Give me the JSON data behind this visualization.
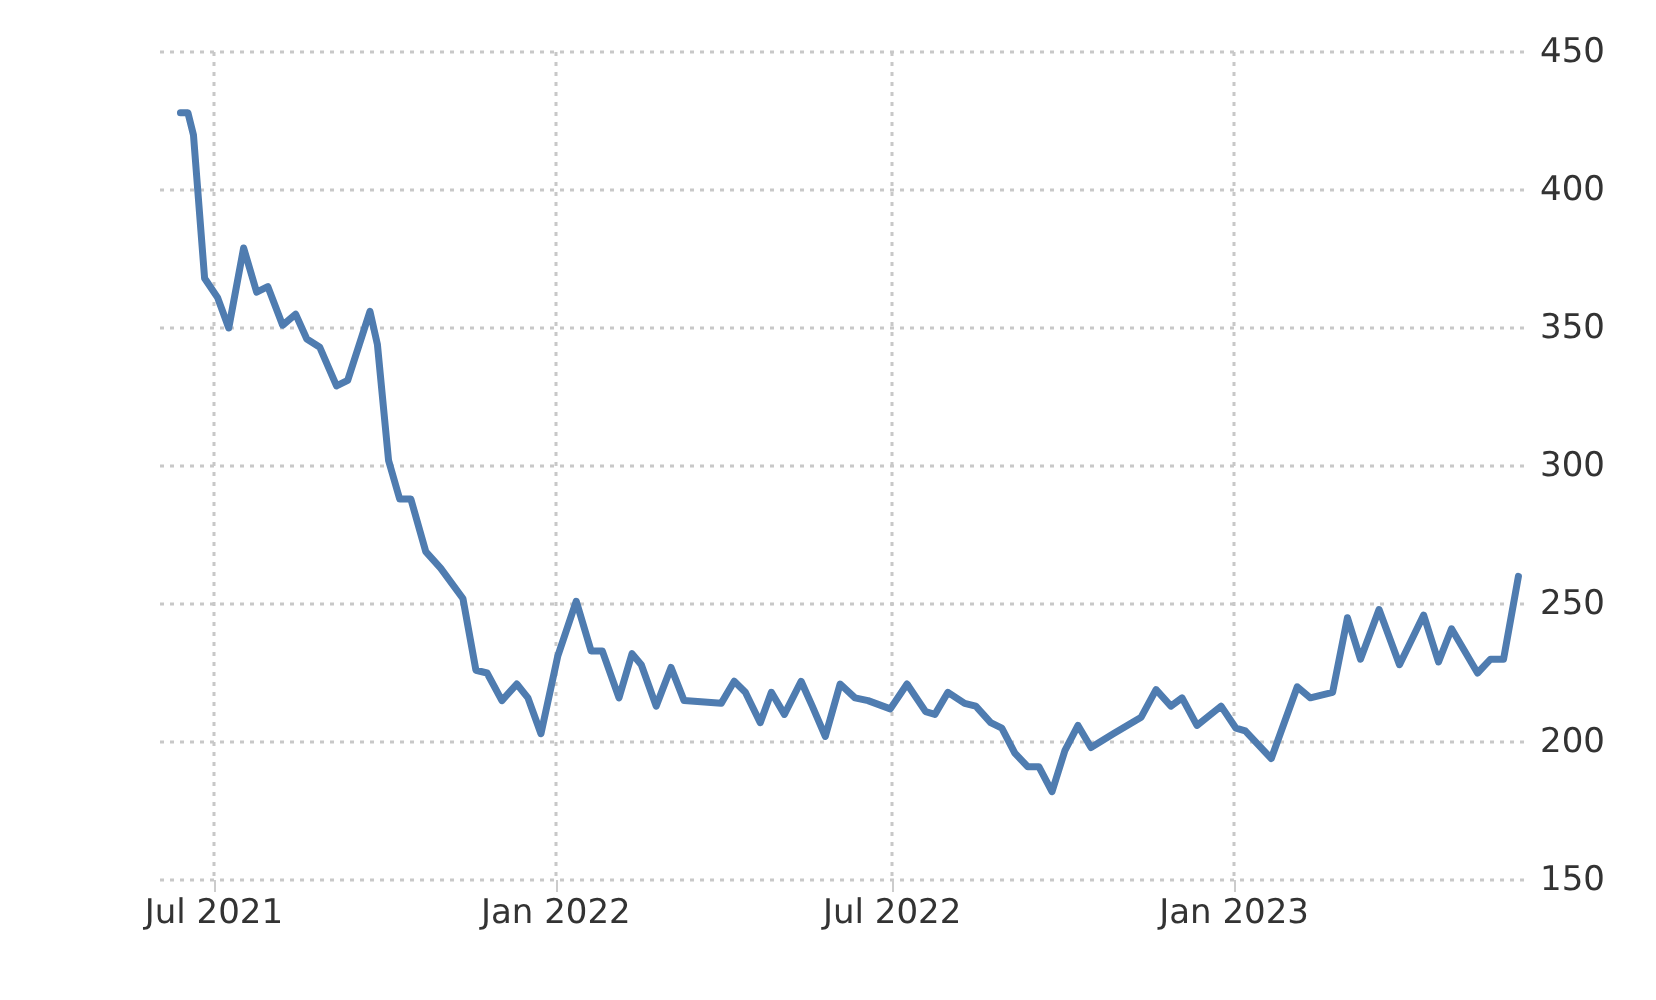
{
  "chart_data": {
    "type": "line",
    "x": [
      "2021-06-13",
      "2021-06-17",
      "2021-06-20",
      "2021-06-26",
      "2021-07-03",
      "2021-07-09",
      "2021-07-17",
      "2021-07-24",
      "2021-07-30",
      "2021-08-07",
      "2021-08-14",
      "2021-08-20",
      "2021-08-27",
      "2021-09-05",
      "2021-09-11",
      "2021-09-23",
      "2021-09-27",
      "2021-10-03",
      "2021-10-09",
      "2021-10-15",
      "2021-10-23",
      "2021-10-31",
      "2021-11-12",
      "2021-11-19",
      "2021-11-25",
      "2021-12-03",
      "2021-12-11",
      "2021-12-17",
      "2021-12-24",
      "2022-01-02",
      "2022-01-12",
      "2022-01-20",
      "2022-01-26",
      "2022-02-04",
      "2022-02-11",
      "2022-02-16",
      "2022-02-24",
      "2022-03-04",
      "2022-03-11",
      "2022-03-31",
      "2022-04-07",
      "2022-04-13",
      "2022-04-21",
      "2022-04-27",
      "2022-05-04",
      "2022-05-13",
      "2022-05-19",
      "2022-05-26",
      "2022-06-03",
      "2022-06-11",
      "2022-06-18",
      "2022-06-30",
      "2022-07-09",
      "2022-07-19",
      "2022-07-24",
      "2022-07-31",
      "2022-08-09",
      "2022-08-15",
      "2022-08-23",
      "2022-08-29",
      "2022-09-05",
      "2022-09-12",
      "2022-09-18",
      "2022-09-25",
      "2022-10-02",
      "2022-10-09",
      "2022-10-16",
      "2022-10-28",
      "2022-11-12",
      "2022-11-20",
      "2022-11-28",
      "2022-12-04",
      "2022-12-12",
      "2022-12-25",
      "2023-01-02",
      "2023-01-07",
      "2023-01-21",
      "2023-02-04",
      "2023-02-11",
      "2023-02-23",
      "2023-03-03",
      "2023-03-10",
      "2023-03-20",
      "2023-03-31",
      "2023-04-13",
      "2023-04-21",
      "2023-04-28",
      "2023-05-12",
      "2023-05-19",
      "2023-05-26",
      "2023-06-03"
    ],
    "series": [
      {
        "color": "#4f7cb0",
        "values": [
          428,
          428,
          420,
          368,
          361,
          350,
          379,
          363,
          365,
          351,
          355,
          346,
          343,
          329,
          331,
          356,
          344,
          302,
          288,
          288,
          269,
          263,
          252,
          226,
          225,
          215,
          221,
          216,
          203,
          231,
          251,
          233,
          233,
          216,
          232,
          228,
          213,
          227,
          215,
          214,
          222,
          218,
          207,
          218,
          210,
          222,
          213,
          202,
          221,
          216,
          215,
          212,
          221,
          211,
          210,
          218,
          214,
          213,
          207,
          205,
          196,
          191,
          191,
          182,
          197,
          206,
          198,
          203,
          209,
          219,
          213,
          216,
          206,
          213,
          205,
          204,
          194,
          220,
          216,
          218,
          245,
          230,
          248,
          228,
          246,
          229,
          241,
          225,
          230,
          230,
          260
        ]
      }
    ],
    "xlim": [
      "2021-06-02",
      "2023-06-06"
    ],
    "xticks": [
      {
        "value": "2021-07-01",
        "label": "Jul 2021"
      },
      {
        "value": "2022-01-01",
        "label": "Jan 2022"
      },
      {
        "value": "2022-07-01",
        "label": "Jul 2022"
      },
      {
        "value": "2023-01-01",
        "label": "Jan 2023"
      }
    ],
    "ylim": [
      150,
      450
    ],
    "yticks": [
      150,
      200,
      250,
      300,
      350,
      400,
      450
    ],
    "grid": true,
    "marker": "none",
    "line_style": "solid"
  }
}
